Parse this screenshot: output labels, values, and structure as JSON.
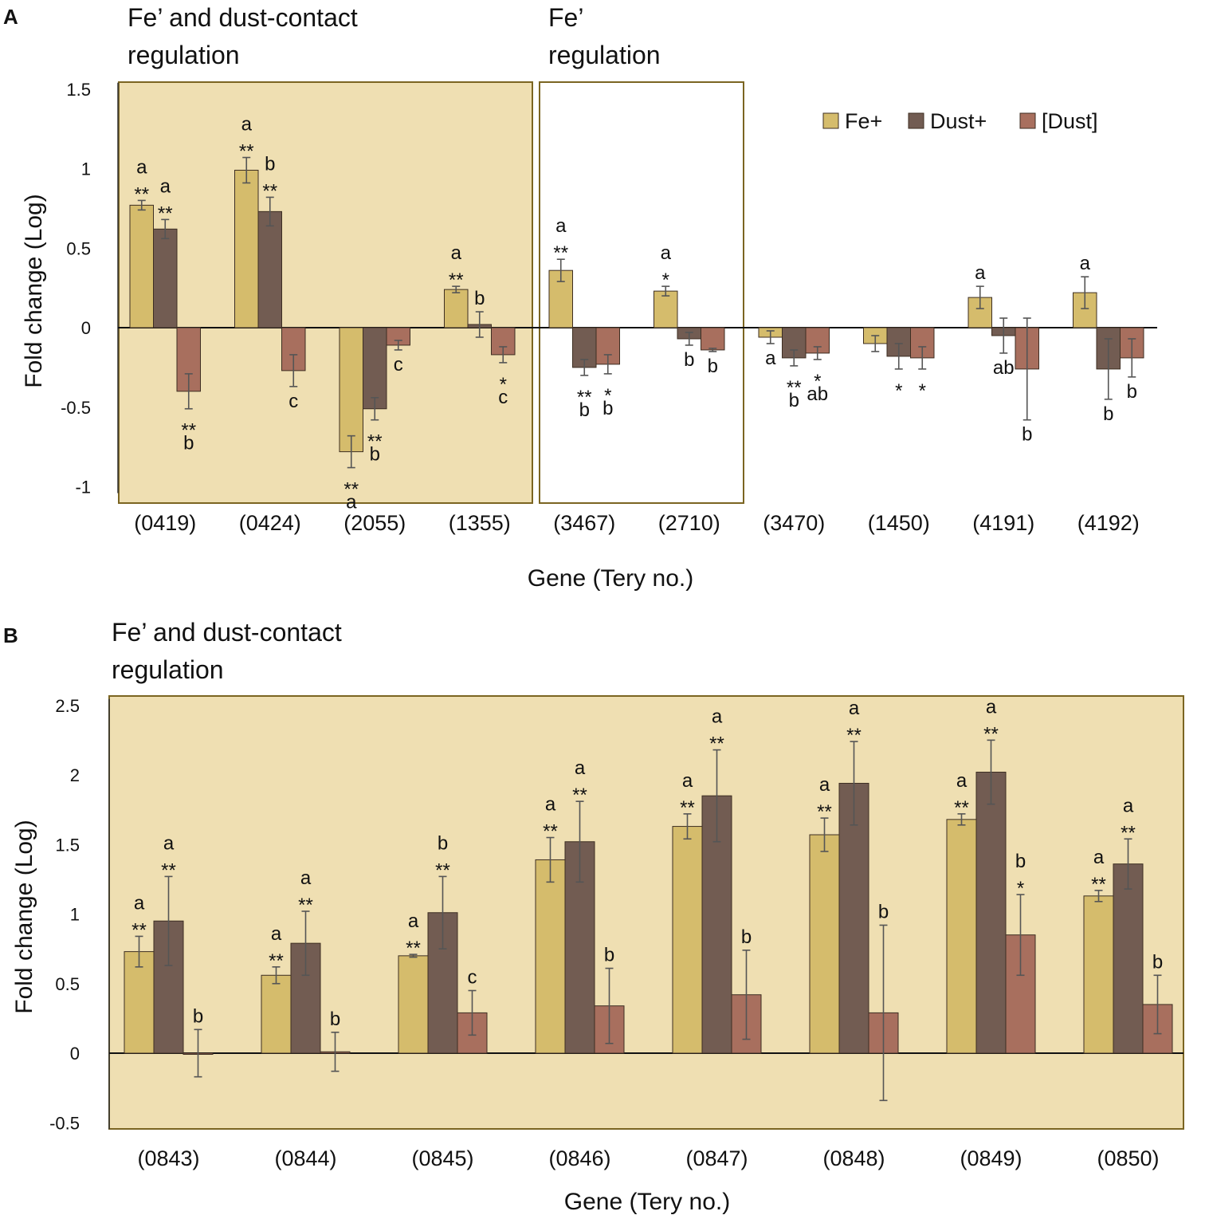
{
  "colors": {
    "fe_plus": "#d5bc6c",
    "dust_plus": "#725c52",
    "dust_conc": "#a86f5e",
    "region_fill": "#efdfb2",
    "region_border": "#7b6522",
    "bar_stroke": "#3d2e22",
    "error_bar": "#555555"
  },
  "chart_data": [
    {
      "panel": "A",
      "type": "bar",
      "xlabel": "Gene (Tery no.)",
      "ylabel": "Fold change (Log)",
      "ylim": [
        -1,
        1.5
      ],
      "yticks": [
        "1.5",
        "1",
        "0.5",
        "0",
        "-0.5",
        "-1"
      ],
      "legend": {
        "position": "top-right",
        "entries": [
          "Fe+",
          "Dust+",
          "[Dust]"
        ]
      },
      "regions": [
        {
          "label_line1": "Fe’ and dust-contact",
          "label_line2": "regulation",
          "first": 0,
          "last": 3,
          "filled": true
        },
        {
          "label_line1": "Fe’",
          "label_line2": "regulation",
          "first": 4,
          "last": 5,
          "filled": false
        }
      ],
      "categories": [
        "(0419)",
        "(0424)",
        "(2055)",
        "(1355)",
        "(3467)",
        "(2710)",
        "(3470)",
        "(1450)",
        "(4191)",
        "(4192)"
      ],
      "series": [
        {
          "name": "Fe+",
          "values": [
            0.77,
            0.99,
            -0.78,
            0.24,
            0.36,
            0.23,
            -0.06,
            -0.1,
            0.19,
            0.22
          ],
          "errors": [
            0.03,
            0.08,
            0.1,
            0.02,
            0.07,
            0.03,
            0.04,
            0.05,
            0.07,
            0.1
          ],
          "annotations": [
            [
              "a",
              "**"
            ],
            [
              "a",
              "**"
            ],
            [
              "**",
              "a"
            ],
            [
              "a",
              "**"
            ],
            [
              "a",
              "**"
            ],
            [
              "a",
              "*"
            ],
            [
              "a"
            ],
            [],
            [
              "a"
            ],
            [
              "a"
            ]
          ]
        },
        {
          "name": "Dust+",
          "values": [
            0.62,
            0.73,
            -0.51,
            0.02,
            -0.25,
            -0.07,
            -0.19,
            -0.18,
            -0.05,
            -0.26
          ],
          "errors": [
            0.06,
            0.09,
            0.07,
            0.08,
            0.05,
            0.04,
            0.05,
            0.08,
            0.11,
            0.19
          ],
          "annotations": [
            [
              "a",
              "**"
            ],
            [
              "b",
              "**"
            ],
            [
              "**",
              "b"
            ],
            [
              "b"
            ],
            [
              "**",
              "b"
            ],
            [
              "b"
            ],
            [
              "**",
              "b"
            ],
            [
              "*"
            ],
            [
              "ab"
            ],
            [
              "b"
            ]
          ]
        },
        {
          "name": "[Dust]",
          "values": [
            -0.4,
            -0.27,
            -0.11,
            -0.17,
            -0.23,
            -0.14,
            -0.16,
            -0.19,
            -0.26,
            -0.19
          ],
          "errors": [
            0.11,
            0.1,
            0.03,
            0.05,
            0.06,
            0.01,
            0.04,
            0.07,
            0.32,
            0.12
          ],
          "annotations": [
            [
              "**",
              "b"
            ],
            [
              "c"
            ],
            [
              "c"
            ],
            [
              "*",
              "c"
            ],
            [
              "*",
              "b"
            ],
            [
              "b"
            ],
            [
              "*",
              "ab"
            ],
            [
              "*"
            ],
            [
              "b"
            ],
            [
              "b"
            ]
          ]
        }
      ]
    },
    {
      "panel": "B",
      "type": "bar",
      "xlabel": "Gene (Tery no.)",
      "ylabel": "Fold change (Log)",
      "ylim": [
        -0.5,
        2.5
      ],
      "yticks": [
        "2.5",
        "2",
        "1.5",
        "1",
        "0.5",
        "0",
        "-0.5"
      ],
      "regions": [
        {
          "label_line1": "Fe’ and dust-contact",
          "label_line2": "regulation",
          "first": 0,
          "last": 7,
          "filled": true
        }
      ],
      "categories": [
        "(0843)",
        "(0844)",
        "(0845)",
        "(0846)",
        "(0847)",
        "(0848)",
        "(0849)",
        "(0850)"
      ],
      "series": [
        {
          "name": "Fe+",
          "values": [
            0.73,
            0.56,
            0.7,
            1.39,
            1.63,
            1.57,
            1.68,
            1.13
          ],
          "errors": [
            0.11,
            0.06,
            0.01,
            0.16,
            0.09,
            0.12,
            0.04,
            0.04
          ],
          "annotations": [
            [
              "a",
              "**"
            ],
            [
              "a",
              "**"
            ],
            [
              "a",
              "**"
            ],
            [
              "a",
              "**"
            ],
            [
              "a",
              "**"
            ],
            [
              "a",
              "**"
            ],
            [
              "a",
              "**"
            ],
            [
              "a",
              "**"
            ]
          ]
        },
        {
          "name": "Dust+",
          "values": [
            0.95,
            0.79,
            1.01,
            1.52,
            1.85,
            1.94,
            2.02,
            1.36
          ],
          "errors": [
            0.32,
            0.23,
            0.26,
            0.29,
            0.33,
            0.3,
            0.23,
            0.18
          ],
          "annotations": [
            [
              "a",
              "**"
            ],
            [
              "a",
              "**"
            ],
            [
              "b",
              "**"
            ],
            [
              "a",
              "**"
            ],
            [
              "a",
              "**"
            ],
            [
              "a",
              "**"
            ],
            [
              "a",
              "**"
            ],
            [
              "a",
              "**"
            ]
          ]
        },
        {
          "name": "[Dust]",
          "values": [
            0.0,
            0.01,
            0.29,
            0.34,
            0.42,
            0.29,
            0.85,
            0.35
          ],
          "errors": [
            0.17,
            0.14,
            0.16,
            0.27,
            0.32,
            0.63,
            0.29,
            0.21
          ],
          "annotations": [
            [
              "b"
            ],
            [
              "b"
            ],
            [
              "c"
            ],
            [
              "b"
            ],
            [
              "b"
            ],
            [
              "b"
            ],
            [
              "b",
              "*"
            ],
            [
              "b"
            ]
          ]
        }
      ]
    }
  ]
}
